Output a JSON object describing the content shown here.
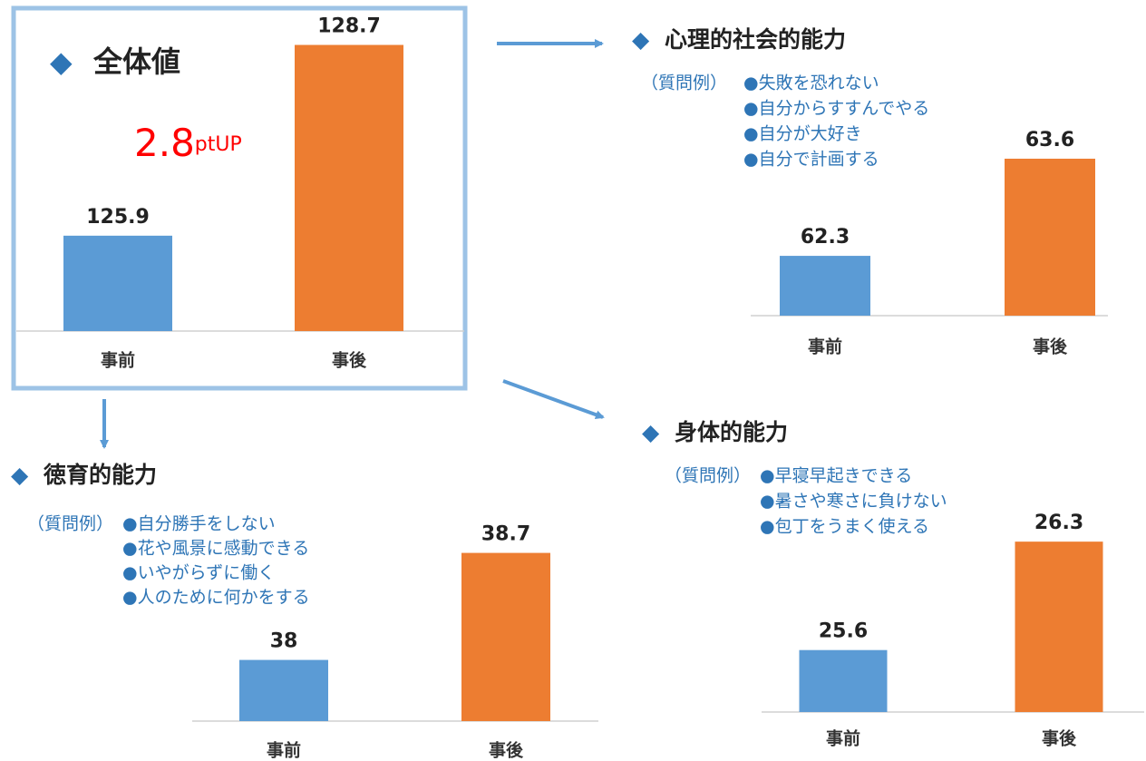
{
  "chart_data": [
    {
      "type": "bar",
      "title": "全体値",
      "annotation_value": "2.8",
      "annotation_unit": "ptUP",
      "categories": [
        "事前",
        "事後"
      ],
      "values": [
        125.9,
        128.7
      ],
      "colors": [
        "#5b9bd5",
        "#ed7d31"
      ],
      "ylim": [
        124.5,
        129
      ]
    },
    {
      "type": "bar",
      "title": "心理的社会的能力",
      "questions_label": "（質問例）",
      "questions": [
        "●失敗を恐れない",
        "●自分からすすんでやる",
        "●自分が大好き",
        "●自分で計画する"
      ],
      "categories": [
        "事前",
        "事後"
      ],
      "values": [
        62.3,
        63.6
      ],
      "colors": [
        "#5b9bd5",
        "#ed7d31"
      ],
      "ylim": [
        61.5,
        64
      ]
    },
    {
      "type": "bar",
      "title": "徳育的能力",
      "questions_label": "（質問例）",
      "questions": [
        "●自分勝手をしない",
        "●花や風景に感動できる",
        "●いやがらずに働く",
        "●人のために何かをする"
      ],
      "categories": [
        "事前",
        "事後"
      ],
      "values": [
        38,
        38.7
      ],
      "colors": [
        "#5b9bd5",
        "#ed7d31"
      ],
      "ylim": [
        37.6,
        39
      ]
    },
    {
      "type": "bar",
      "title": "身体的能力",
      "questions_label": "（質問例）",
      "questions": [
        "●早寝早起きできる",
        "●暑さや寒さに負けない",
        "●包丁をうまく使える"
      ],
      "categories": [
        "事前",
        "事後"
      ],
      "values": [
        25.6,
        26.3
      ],
      "colors": [
        "#5b9bd5",
        "#ed7d31"
      ],
      "ylim": [
        25.2,
        26.5
      ]
    }
  ]
}
